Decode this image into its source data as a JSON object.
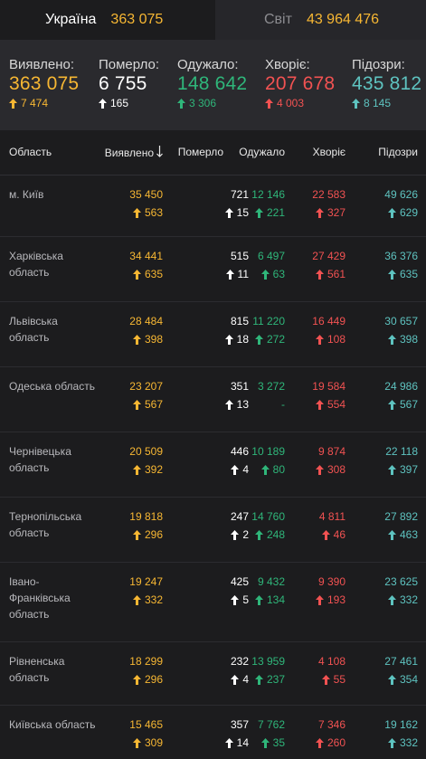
{
  "tabs": {
    "ukraine": {
      "label": "Україна",
      "value": "363 075"
    },
    "world": {
      "label": "Світ",
      "value": "43 964 476"
    }
  },
  "summary": {
    "detected": {
      "label": "Виявлено:",
      "value": "363 075",
      "delta": "7 474"
    },
    "died": {
      "label": "Померло:",
      "value": "6 755",
      "delta": "165"
    },
    "recovered": {
      "label": "Одужало:",
      "value": "148 642",
      "delta": "3 306"
    },
    "sick": {
      "label": "Хворіє:",
      "value": "207 678",
      "delta": "4 003"
    },
    "suspected": {
      "label": "Підозри:",
      "value": "435 812",
      "delta": "8 145"
    }
  },
  "table": {
    "headers": {
      "region": "Область",
      "detected": "Виявлено",
      "died": "Померло",
      "recovered": "Одужало",
      "sick": "Хворіє",
      "suspected": "Підозри"
    },
    "sort_icon": "arrow-down-icon",
    "rows": [
      {
        "region": "м. Київ",
        "detected": "35 450",
        "detected_d": "563",
        "died": "721",
        "died_d": "15",
        "recovered": "12 146",
        "recovered_d": "221",
        "sick": "22 583",
        "sick_d": "327",
        "suspected": "49 626",
        "suspected_d": "629"
      },
      {
        "region": "Харківська область",
        "detected": "34 441",
        "detected_d": "635",
        "died": "515",
        "died_d": "11",
        "recovered": "6 497",
        "recovered_d": "63",
        "sick": "27 429",
        "sick_d": "561",
        "suspected": "36 376",
        "suspected_d": "635"
      },
      {
        "region": "Львівська область",
        "detected": "28 484",
        "detected_d": "398",
        "died": "815",
        "died_d": "18",
        "recovered": "11 220",
        "recovered_d": "272",
        "sick": "16 449",
        "sick_d": "108",
        "suspected": "30 657",
        "suspected_d": "398"
      },
      {
        "region": "Одеська область",
        "detected": "23 207",
        "detected_d": "567",
        "died": "351",
        "died_d": "13",
        "recovered": "3 272",
        "recovered_d": "-",
        "sick": "19 584",
        "sick_d": "554",
        "suspected": "24 986",
        "suspected_d": "567"
      },
      {
        "region": "Чернівецька область",
        "detected": "20 509",
        "detected_d": "392",
        "died": "446",
        "died_d": "4",
        "recovered": "10 189",
        "recovered_d": "80",
        "sick": "9 874",
        "sick_d": "308",
        "suspected": "22 118",
        "suspected_d": "397"
      },
      {
        "region": "Тернопільська область",
        "detected": "19 818",
        "detected_d": "296",
        "died": "247",
        "died_d": "2",
        "recovered": "14 760",
        "recovered_d": "248",
        "sick": "4 811",
        "sick_d": "46",
        "suspected": "27 892",
        "suspected_d": "463"
      },
      {
        "region": "Івано-Франківська область",
        "detected": "19 247",
        "detected_d": "332",
        "died": "425",
        "died_d": "5",
        "recovered": "9 432",
        "recovered_d": "134",
        "sick": "9 390",
        "sick_d": "193",
        "suspected": "23 625",
        "suspected_d": "332"
      },
      {
        "region": "Рівненська область",
        "detected": "18 299",
        "detected_d": "296",
        "died": "232",
        "died_d": "4",
        "recovered": "13 959",
        "recovered_d": "237",
        "sick": "4 108",
        "sick_d": "55",
        "suspected": "27 461",
        "suspected_d": "354"
      },
      {
        "region": "Київська область",
        "detected": "15 465",
        "detected_d": "309",
        "died": "357",
        "died_d": "14",
        "recovered": "7 762",
        "recovered_d": "35",
        "sick": "7 346",
        "sick_d": "260",
        "suspected": "19 162",
        "suspected_d": "332"
      }
    ]
  },
  "colors": {
    "detected": "#f7b733",
    "died": "#ffffff",
    "recovered": "#2fb67a",
    "sick": "#f25252",
    "suspected": "#5ec3c0"
  }
}
